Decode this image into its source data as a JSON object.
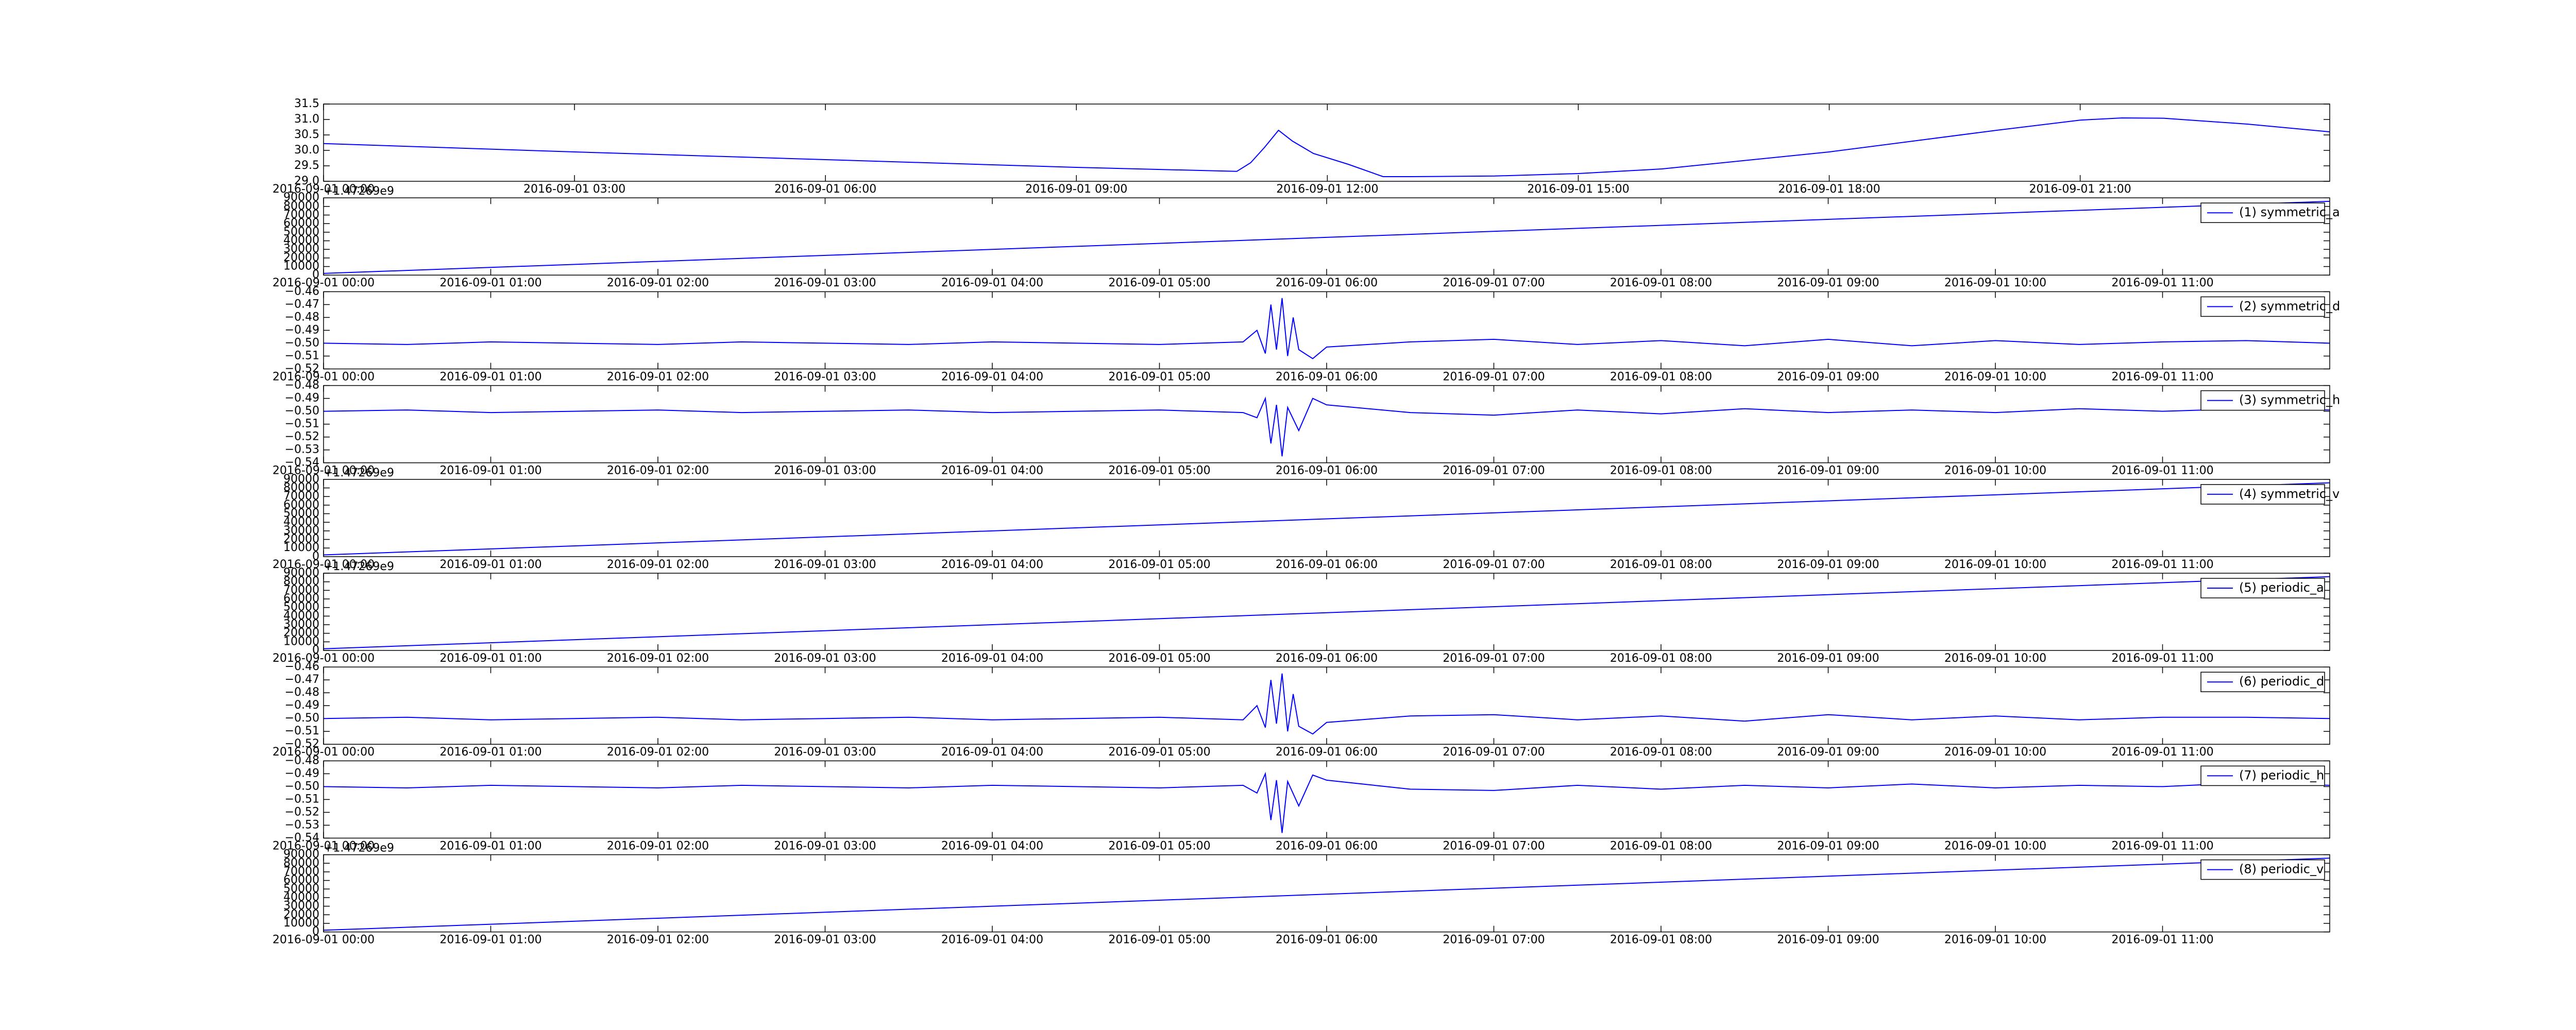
{
  "chart_data": [
    {
      "type": "line",
      "x": [
        "2016-09-01 00:00",
        "2016-09-01 03:00",
        "2016-09-01 06:00",
        "2016-09-01 09:00",
        "2016-09-01 10:55",
        "2016-09-01 11:05",
        "2016-09-01 11:15",
        "2016-09-01 11:25",
        "2016-09-01 11:35",
        "2016-09-01 11:50",
        "2016-09-01 12:15",
        "2016-09-01 12:40",
        "2016-09-01 13:00",
        "2016-09-01 14:00",
        "2016-09-01 15:00",
        "2016-09-01 16:00",
        "2016-09-01 18:00",
        "2016-09-01 20:00",
        "2016-09-01 21:00",
        "2016-09-01 21:30",
        "2016-09-01 22:00",
        "2016-09-01 23:00",
        "2016-09-01 23:59"
      ],
      "series": [
        {
          "color": "#0000ff",
          "values": [
            30.22,
            29.95,
            29.7,
            29.45,
            29.32,
            29.6,
            30.1,
            30.65,
            30.3,
            29.9,
            29.55,
            29.15,
            29.15,
            29.17,
            29.25,
            29.4,
            29.95,
            30.65,
            30.98,
            31.05,
            31.04,
            30.85,
            30.6
          ]
        }
      ],
      "xlim": [
        "2016-09-01 00:00",
        "2016-09-01 23:59"
      ],
      "xticks": [
        "2016-09-01 00:00",
        "2016-09-01 03:00",
        "2016-09-01 06:00",
        "2016-09-01 09:00",
        "2016-09-01 12:00",
        "2016-09-01 15:00",
        "2016-09-01 18:00",
        "2016-09-01 21:00"
      ],
      "ylim": [
        29.0,
        31.5
      ],
      "yticks": [
        {
          "value": 29.0,
          "label": "29.0"
        },
        29.5,
        {
          "value": 30.0,
          "label": "30.0"
        },
        30.5,
        {
          "value": 31.0,
          "label": "31.0"
        },
        31.5
      ]
    },
    {
      "type": "line",
      "offset_text": "+1.47269e9",
      "legend": "upper right",
      "x": [
        "2016-09-01 00:00",
        "2016-09-01 12:00"
      ],
      "series": [
        {
          "name": "(1) symmetric_a",
          "color": "#0000ff",
          "values": [
            2000,
            86000
          ]
        }
      ],
      "xlim": [
        "2016-09-01 00:00",
        "2016-09-01 12:00"
      ],
      "xticks": [
        "2016-09-01 00:00",
        "2016-09-01 01:00",
        "2016-09-01 02:00",
        "2016-09-01 03:00",
        "2016-09-01 04:00",
        "2016-09-01 05:00",
        "2016-09-01 06:00",
        "2016-09-01 07:00",
        "2016-09-01 08:00",
        "2016-09-01 09:00",
        "2016-09-01 10:00",
        "2016-09-01 11:00"
      ],
      "ylim": [
        0,
        90000
      ],
      "yticks": [
        0,
        10000,
        20000,
        30000,
        40000,
        50000,
        60000,
        70000,
        80000,
        90000
      ]
    },
    {
      "type": "line",
      "legend": "upper right",
      "x": [
        "2016-09-01 00:00",
        "2016-09-01 00:30",
        "2016-09-01 01:00",
        "2016-09-01 01:30",
        "2016-09-01 02:00",
        "2016-09-01 02:30",
        "2016-09-01 03:00",
        "2016-09-01 03:30",
        "2016-09-01 04:00",
        "2016-09-01 04:30",
        "2016-09-01 05:00",
        "2016-09-01 05:30",
        "2016-09-01 05:35",
        "2016-09-01 05:38",
        "2016-09-01 05:40",
        "2016-09-01 05:42",
        "2016-09-01 05:44",
        "2016-09-01 05:46",
        "2016-09-01 05:48",
        "2016-09-01 05:50",
        "2016-09-01 05:55",
        "2016-09-01 06:00",
        "2016-09-01 06:30",
        "2016-09-01 07:00",
        "2016-09-01 07:30",
        "2016-09-01 08:00",
        "2016-09-01 08:30",
        "2016-09-01 09:00",
        "2016-09-01 09:30",
        "2016-09-01 10:00",
        "2016-09-01 10:30",
        "2016-09-01 11:00",
        "2016-09-01 11:30",
        "2016-09-01 12:00"
      ],
      "series": [
        {
          "name": "(2) symmetric_d",
          "color": "#0000ff",
          "values": [
            -0.5,
            -0.501,
            -0.499,
            -0.5,
            -0.501,
            -0.499,
            -0.5,
            -0.501,
            -0.499,
            -0.5,
            -0.501,
            -0.499,
            -0.49,
            -0.508,
            -0.47,
            -0.505,
            -0.465,
            -0.51,
            -0.48,
            -0.505,
            -0.512,
            -0.503,
            -0.499,
            -0.497,
            -0.501,
            -0.498,
            -0.502,
            -0.497,
            -0.502,
            -0.498,
            -0.501,
            -0.499,
            -0.498,
            -0.5
          ]
        }
      ],
      "xlim": [
        "2016-09-01 00:00",
        "2016-09-01 12:00"
      ],
      "xticks": [
        "2016-09-01 00:00",
        "2016-09-01 01:00",
        "2016-09-01 02:00",
        "2016-09-01 03:00",
        "2016-09-01 04:00",
        "2016-09-01 05:00",
        "2016-09-01 06:00",
        "2016-09-01 07:00",
        "2016-09-01 08:00",
        "2016-09-01 09:00",
        "2016-09-01 10:00",
        "2016-09-01 11:00"
      ],
      "ylim": [
        -0.52,
        -0.46
      ],
      "yticks": [
        {
          "value": -0.52,
          "label": "−0.52"
        },
        {
          "value": -0.51,
          "label": "−0.51"
        },
        {
          "value": -0.5,
          "label": "−0.50"
        },
        {
          "value": -0.49,
          "label": "−0.49"
        },
        {
          "value": -0.48,
          "label": "−0.48"
        },
        {
          "value": -0.47,
          "label": "−0.47"
        },
        {
          "value": -0.46,
          "label": "−0.46"
        }
      ]
    },
    {
      "type": "line",
      "legend": "upper right",
      "x": [
        "2016-09-01 00:00",
        "2016-09-01 00:30",
        "2016-09-01 01:00",
        "2016-09-01 01:30",
        "2016-09-01 02:00",
        "2016-09-01 02:30",
        "2016-09-01 03:00",
        "2016-09-01 03:30",
        "2016-09-01 04:00",
        "2016-09-01 04:30",
        "2016-09-01 05:00",
        "2016-09-01 05:30",
        "2016-09-01 05:35",
        "2016-09-01 05:38",
        "2016-09-01 05:40",
        "2016-09-01 05:42",
        "2016-09-01 05:44",
        "2016-09-01 05:46",
        "2016-09-01 05:50",
        "2016-09-01 05:55",
        "2016-09-01 06:00",
        "2016-09-01 06:30",
        "2016-09-01 07:00",
        "2016-09-01 07:30",
        "2016-09-01 08:00",
        "2016-09-01 08:30",
        "2016-09-01 09:00",
        "2016-09-01 09:30",
        "2016-09-01 10:00",
        "2016-09-01 10:30",
        "2016-09-01 11:00",
        "2016-09-01 11:30",
        "2016-09-01 12:00"
      ],
      "series": [
        {
          "name": "(3) symmetric_h",
          "color": "#0000ff",
          "values": [
            -0.5,
            -0.499,
            -0.501,
            -0.5,
            -0.499,
            -0.501,
            -0.5,
            -0.499,
            -0.501,
            -0.5,
            -0.499,
            -0.501,
            -0.505,
            -0.49,
            -0.525,
            -0.495,
            -0.535,
            -0.497,
            -0.515,
            -0.49,
            -0.495,
            -0.501,
            -0.503,
            -0.499,
            -0.502,
            -0.498,
            -0.501,
            -0.499,
            -0.501,
            -0.498,
            -0.5,
            -0.498,
            -0.499
          ]
        }
      ],
      "xlim": [
        "2016-09-01 00:00",
        "2016-09-01 12:00"
      ],
      "xticks": [
        "2016-09-01 00:00",
        "2016-09-01 01:00",
        "2016-09-01 02:00",
        "2016-09-01 03:00",
        "2016-09-01 04:00",
        "2016-09-01 05:00",
        "2016-09-01 06:00",
        "2016-09-01 07:00",
        "2016-09-01 08:00",
        "2016-09-01 09:00",
        "2016-09-01 10:00",
        "2016-09-01 11:00"
      ],
      "ylim": [
        -0.54,
        -0.48
      ],
      "yticks": [
        {
          "value": -0.54,
          "label": "−0.54"
        },
        {
          "value": -0.53,
          "label": "−0.53"
        },
        {
          "value": -0.52,
          "label": "−0.52"
        },
        {
          "value": -0.51,
          "label": "−0.51"
        },
        {
          "value": -0.5,
          "label": "−0.50"
        },
        {
          "value": -0.49,
          "label": "−0.49"
        },
        {
          "value": -0.48,
          "label": "−0.48"
        }
      ]
    },
    {
      "type": "line",
      "offset_text": "+1.47269e9",
      "legend": "upper right",
      "x": [
        "2016-09-01 00:00",
        "2016-09-01 12:00"
      ],
      "series": [
        {
          "name": "(4) symmetric_v",
          "color": "#0000ff",
          "values": [
            2000,
            86000
          ]
        }
      ],
      "xlim": [
        "2016-09-01 00:00",
        "2016-09-01 12:00"
      ],
      "xticks": [
        "2016-09-01 00:00",
        "2016-09-01 01:00",
        "2016-09-01 02:00",
        "2016-09-01 03:00",
        "2016-09-01 04:00",
        "2016-09-01 05:00",
        "2016-09-01 06:00",
        "2016-09-01 07:00",
        "2016-09-01 08:00",
        "2016-09-01 09:00",
        "2016-09-01 10:00",
        "2016-09-01 11:00"
      ],
      "ylim": [
        0,
        90000
      ],
      "yticks": [
        0,
        10000,
        20000,
        30000,
        40000,
        50000,
        60000,
        70000,
        80000,
        90000
      ]
    },
    {
      "type": "line",
      "offset_text": "+1.47269e9",
      "legend": "upper right",
      "x": [
        "2016-09-01 00:00",
        "2016-09-01 12:00"
      ],
      "series": [
        {
          "name": "(5) periodic_a",
          "color": "#0000ff",
          "values": [
            2000,
            86000
          ]
        }
      ],
      "xlim": [
        "2016-09-01 00:00",
        "2016-09-01 12:00"
      ],
      "xticks": [
        "2016-09-01 00:00",
        "2016-09-01 01:00",
        "2016-09-01 02:00",
        "2016-09-01 03:00",
        "2016-09-01 04:00",
        "2016-09-01 05:00",
        "2016-09-01 06:00",
        "2016-09-01 07:00",
        "2016-09-01 08:00",
        "2016-09-01 09:00",
        "2016-09-01 10:00",
        "2016-09-01 11:00"
      ],
      "ylim": [
        0,
        90000
      ],
      "yticks": [
        0,
        10000,
        20000,
        30000,
        40000,
        50000,
        60000,
        70000,
        80000,
        90000
      ]
    },
    {
      "type": "line",
      "legend": "upper right",
      "x": [
        "2016-09-01 00:00",
        "2016-09-01 00:30",
        "2016-09-01 01:00",
        "2016-09-01 01:30",
        "2016-09-01 02:00",
        "2016-09-01 02:30",
        "2016-09-01 03:00",
        "2016-09-01 03:30",
        "2016-09-01 04:00",
        "2016-09-01 04:30",
        "2016-09-01 05:00",
        "2016-09-01 05:30",
        "2016-09-01 05:35",
        "2016-09-01 05:38",
        "2016-09-01 05:40",
        "2016-09-01 05:42",
        "2016-09-01 05:44",
        "2016-09-01 05:46",
        "2016-09-01 05:48",
        "2016-09-01 05:50",
        "2016-09-01 05:55",
        "2016-09-01 06:00",
        "2016-09-01 06:30",
        "2016-09-01 07:00",
        "2016-09-01 07:30",
        "2016-09-01 08:00",
        "2016-09-01 08:30",
        "2016-09-01 09:00",
        "2016-09-01 09:30",
        "2016-09-01 10:00",
        "2016-09-01 10:30",
        "2016-09-01 11:00",
        "2016-09-01 11:30",
        "2016-09-01 12:00"
      ],
      "series": [
        {
          "name": "(6) periodic_d",
          "color": "#0000ff",
          "values": [
            -0.5,
            -0.499,
            -0.501,
            -0.5,
            -0.499,
            -0.501,
            -0.5,
            -0.499,
            -0.501,
            -0.5,
            -0.499,
            -0.501,
            -0.49,
            -0.507,
            -0.47,
            -0.504,
            -0.465,
            -0.51,
            -0.481,
            -0.506,
            -0.512,
            -0.503,
            -0.498,
            -0.497,
            -0.501,
            -0.498,
            -0.502,
            -0.497,
            -0.501,
            -0.498,
            -0.501,
            -0.499,
            -0.499,
            -0.5
          ]
        }
      ],
      "xlim": [
        "2016-09-01 00:00",
        "2016-09-01 12:00"
      ],
      "xticks": [
        "2016-09-01 00:00",
        "2016-09-01 01:00",
        "2016-09-01 02:00",
        "2016-09-01 03:00",
        "2016-09-01 04:00",
        "2016-09-01 05:00",
        "2016-09-01 06:00",
        "2016-09-01 07:00",
        "2016-09-01 08:00",
        "2016-09-01 09:00",
        "2016-09-01 10:00",
        "2016-09-01 11:00"
      ],
      "ylim": [
        -0.52,
        -0.46
      ],
      "yticks": [
        {
          "value": -0.52,
          "label": "−0.52"
        },
        {
          "value": -0.51,
          "label": "−0.51"
        },
        {
          "value": -0.5,
          "label": "−0.50"
        },
        {
          "value": -0.49,
          "label": "−0.49"
        },
        {
          "value": -0.48,
          "label": "−0.48"
        },
        {
          "value": -0.47,
          "label": "−0.47"
        },
        {
          "value": -0.46,
          "label": "−0.46"
        }
      ]
    },
    {
      "type": "line",
      "legend": "upper right",
      "x": [
        "2016-09-01 00:00",
        "2016-09-01 00:30",
        "2016-09-01 01:00",
        "2016-09-01 01:30",
        "2016-09-01 02:00",
        "2016-09-01 02:30",
        "2016-09-01 03:00",
        "2016-09-01 03:30",
        "2016-09-01 04:00",
        "2016-09-01 04:30",
        "2016-09-01 05:00",
        "2016-09-01 05:30",
        "2016-09-01 05:35",
        "2016-09-01 05:38",
        "2016-09-01 05:40",
        "2016-09-01 05:42",
        "2016-09-01 05:44",
        "2016-09-01 05:46",
        "2016-09-01 05:50",
        "2016-09-01 05:55",
        "2016-09-01 06:00",
        "2016-09-01 06:30",
        "2016-09-01 07:00",
        "2016-09-01 07:30",
        "2016-09-01 08:00",
        "2016-09-01 08:30",
        "2016-09-01 09:00",
        "2016-09-01 09:30",
        "2016-09-01 10:00",
        "2016-09-01 10:30",
        "2016-09-01 11:00",
        "2016-09-01 11:30",
        "2016-09-01 12:00"
      ],
      "series": [
        {
          "name": "(7) periodic_h",
          "color": "#0000ff",
          "values": [
            -0.5,
            -0.501,
            -0.499,
            -0.5,
            -0.501,
            -0.499,
            -0.5,
            -0.501,
            -0.499,
            -0.5,
            -0.501,
            -0.499,
            -0.505,
            -0.49,
            -0.526,
            -0.495,
            -0.536,
            -0.496,
            -0.515,
            -0.491,
            -0.495,
            -0.502,
            -0.503,
            -0.499,
            -0.502,
            -0.499,
            -0.501,
            -0.498,
            -0.501,
            -0.499,
            -0.5,
            -0.497,
            -0.499
          ]
        }
      ],
      "xlim": [
        "2016-09-01 00:00",
        "2016-09-01 12:00"
      ],
      "xticks": [
        "2016-09-01 00:00",
        "2016-09-01 01:00",
        "2016-09-01 02:00",
        "2016-09-01 03:00",
        "2016-09-01 04:00",
        "2016-09-01 05:00",
        "2016-09-01 06:00",
        "2016-09-01 07:00",
        "2016-09-01 08:00",
        "2016-09-01 09:00",
        "2016-09-01 10:00",
        "2016-09-01 11:00"
      ],
      "ylim": [
        -0.54,
        -0.48
      ],
      "yticks": [
        {
          "value": -0.54,
          "label": "−0.54"
        },
        {
          "value": -0.53,
          "label": "−0.53"
        },
        {
          "value": -0.52,
          "label": "−0.52"
        },
        {
          "value": -0.51,
          "label": "−0.51"
        },
        {
          "value": -0.5,
          "label": "−0.50"
        },
        {
          "value": -0.49,
          "label": "−0.49"
        },
        {
          "value": -0.48,
          "label": "−0.48"
        }
      ]
    },
    {
      "type": "line",
      "offset_text": "+1.47269e9",
      "legend": "upper right",
      "x": [
        "2016-09-01 00:00",
        "2016-09-01 12:00"
      ],
      "series": [
        {
          "name": "(8) periodic_v",
          "color": "#0000ff",
          "values": [
            2000,
            86000
          ]
        }
      ],
      "xlim": [
        "2016-09-01 00:00",
        "2016-09-01 12:00"
      ],
      "xticks": [
        "2016-09-01 00:00",
        "2016-09-01 01:00",
        "2016-09-01 02:00",
        "2016-09-01 03:00",
        "2016-09-01 04:00",
        "2016-09-01 05:00",
        "2016-09-01 06:00",
        "2016-09-01 07:00",
        "2016-09-01 08:00",
        "2016-09-01 09:00",
        "2016-09-01 10:00",
        "2016-09-01 11:00"
      ],
      "ylim": [
        0,
        90000
      ],
      "yticks": [
        0,
        10000,
        20000,
        30000,
        40000,
        50000,
        60000,
        70000,
        80000,
        90000
      ]
    }
  ]
}
